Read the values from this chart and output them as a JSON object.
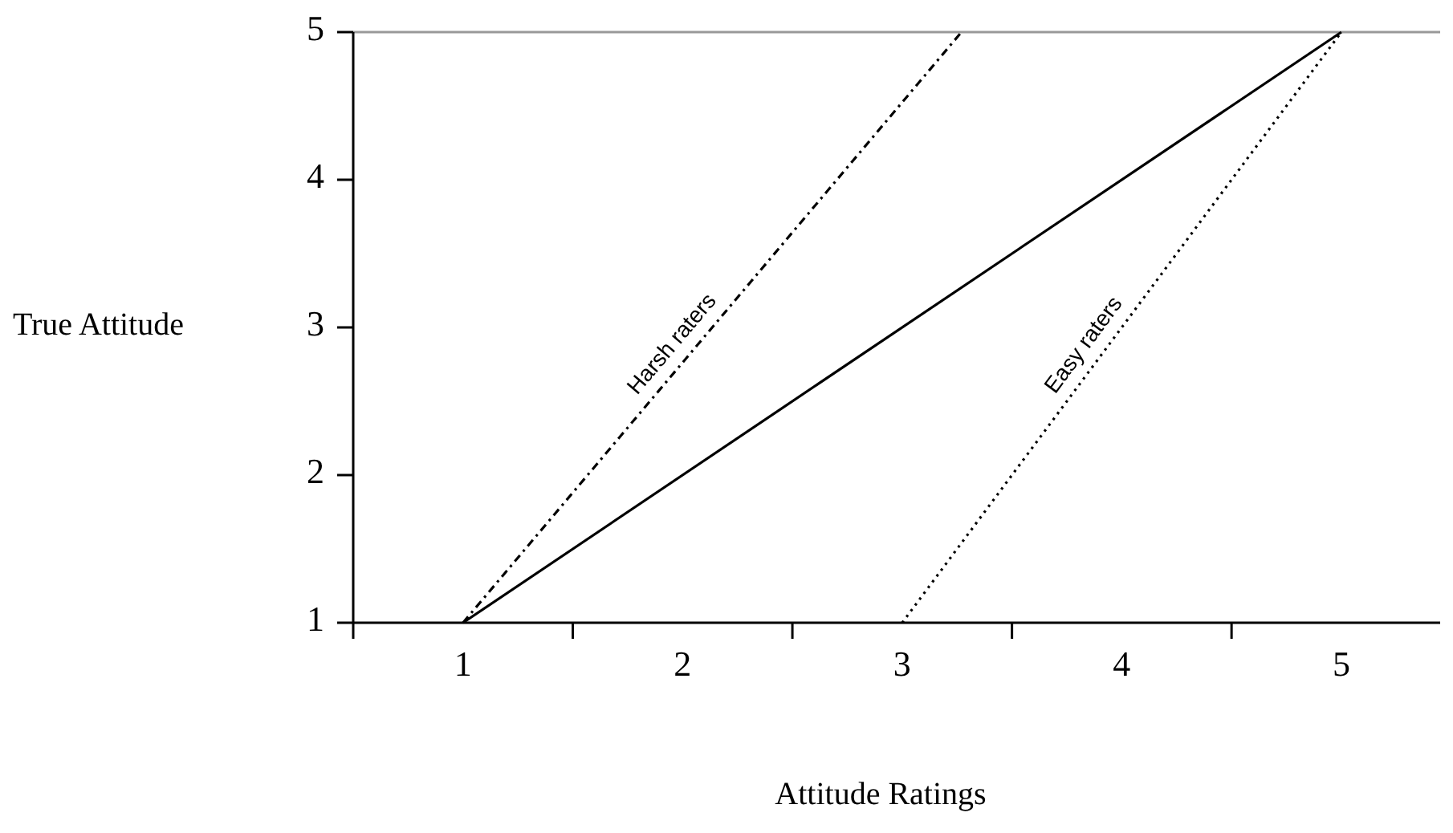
{
  "chart_data": {
    "type": "line",
    "xlabel": "Attitude Ratings",
    "ylabel": "True Attitude",
    "xlim": [
      0.5,
      5.45
    ],
    "xticks": [
      {
        "value": 0.5,
        "label": null
      },
      {
        "value": 1,
        "label": "1"
      },
      {
        "value": 1.5,
        "label": null
      },
      {
        "value": 2,
        "label": "2"
      },
      {
        "value": 2.5,
        "label": null
      },
      {
        "value": 3,
        "label": "3"
      },
      {
        "value": 3.5,
        "label": null
      },
      {
        "value": 4,
        "label": "4"
      },
      {
        "value": 4.5,
        "label": null
      },
      {
        "value": 5,
        "label": "5"
      }
    ],
    "ylim": [
      1,
      5
    ],
    "yticks": [
      1,
      2,
      3,
      4,
      5
    ],
    "grid": false,
    "series": [
      {
        "color": "#000000",
        "line_style": "solid",
        "x": [
          1,
          5
        ],
        "values": [
          1,
          5
        ]
      },
      {
        "name": "Harsh raters",
        "color": "#000000",
        "line_style": "dashed",
        "x": [
          1,
          3.27
        ],
        "values": [
          1,
          5
        ]
      },
      {
        "name": "Easy raters",
        "color": "#000000",
        "line_style": "dotted",
        "x": [
          3,
          5
        ],
        "values": [
          1,
          5
        ]
      }
    ]
  }
}
